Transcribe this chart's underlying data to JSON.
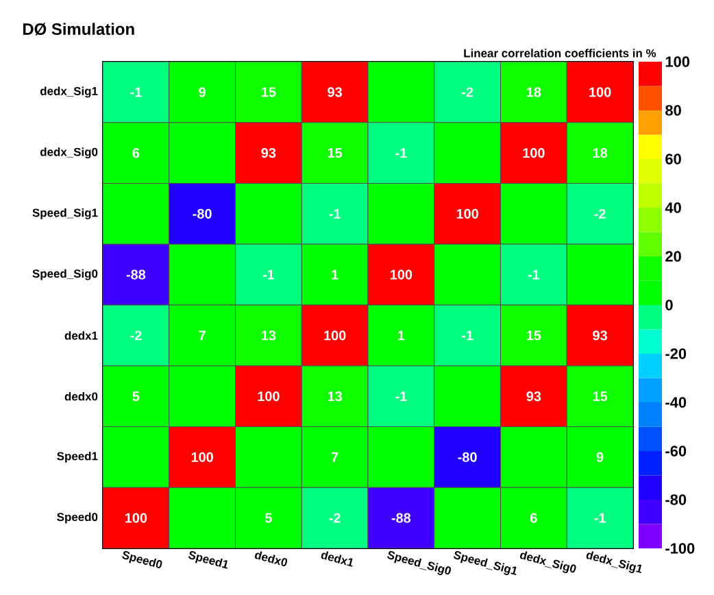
{
  "chart_data": {
    "type": "heatmap",
    "title": "DØ Simulation",
    "clabel": "Linear correlation coefficients in %",
    "categories": [
      "Speed0",
      "Speed1",
      "dedx0",
      "dedx1",
      "Speed_Sig0",
      "Speed_Sig1",
      "dedx_Sig0",
      "dedx_Sig1"
    ],
    "y_categories": [
      "dedx_Sig1",
      "dedx_Sig0",
      "Speed_Sig1",
      "Speed_Sig0",
      "dedx1",
      "dedx0",
      "Speed1",
      "Speed0"
    ],
    "cells": [
      [
        -1,
        9,
        15,
        93,
        0,
        -2,
        18,
        100
      ],
      [
        6,
        0,
        93,
        15,
        -1,
        0,
        100,
        18
      ],
      [
        0,
        -80,
        0,
        -1,
        0,
        100,
        0,
        -2
      ],
      [
        -88,
        0,
        -1,
        1,
        100,
        0,
        -1,
        0
      ],
      [
        -2,
        7,
        13,
        100,
        1,
        -1,
        15,
        93
      ],
      [
        5,
        0,
        100,
        13,
        -1,
        0,
        93,
        15
      ],
      [
        0,
        100,
        0,
        7,
        0,
        -80,
        0,
        9
      ],
      [
        100,
        0,
        5,
        -2,
        -88,
        0,
        6,
        -1
      ]
    ],
    "cell_labels": [
      [
        "-1",
        "9",
        "15",
        "93",
        null,
        "-2",
        "18",
        "100"
      ],
      [
        "6",
        null,
        "93",
        "15",
        "-1",
        null,
        "100",
        "18"
      ],
      [
        null,
        "-80",
        null,
        "-1",
        null,
        "100",
        null,
        "-2"
      ],
      [
        "-88",
        null,
        "-1",
        "1",
        "100",
        null,
        "-1",
        null
      ],
      [
        "-2",
        "7",
        "13",
        "100",
        "1",
        "-1",
        "15",
        "93"
      ],
      [
        "5",
        null,
        "100",
        "13",
        "-1",
        null,
        "93",
        "15"
      ],
      [
        null,
        "100",
        null,
        "7",
        null,
        "-80",
        null,
        "9"
      ],
      [
        "100",
        null,
        "5",
        "-2",
        "-88",
        null,
        "6",
        "-1"
      ]
    ],
    "clim": [
      -100,
      100
    ],
    "cticks": [
      -100,
      -80,
      -60,
      -40,
      -20,
      0,
      20,
      40,
      60,
      80,
      100
    ]
  }
}
